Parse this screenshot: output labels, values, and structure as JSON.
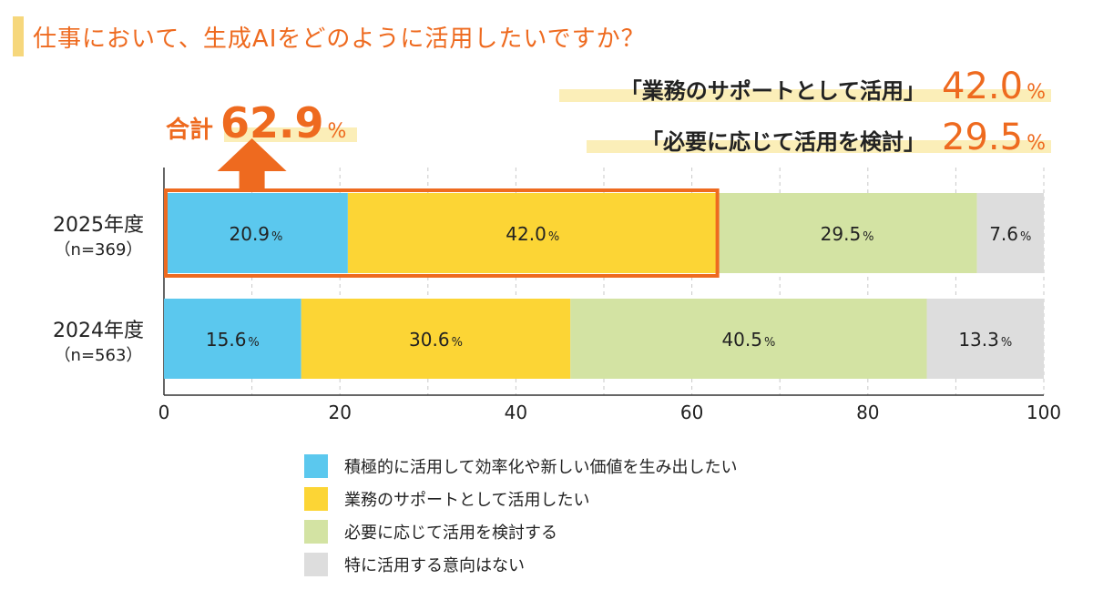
{
  "header": {
    "title": "仕事において、生成AIをどのように活用したいですか？"
  },
  "highlights": [
    {
      "label": "「業務のサポートとして活用」",
      "value": "42.0",
      "unit": "%"
    },
    {
      "label": "「必要に応じて活用を検討」",
      "value": "29.5",
      "unit": "%"
    }
  ],
  "total": {
    "label": "合計",
    "value": "62.9",
    "unit": "%"
  },
  "chart_data": {
    "type": "bar",
    "orientation": "horizontal-stacked",
    "categories": [
      "2025年度",
      "2024年度"
    ],
    "category_sublabels": [
      "（n=369）",
      "（n=563）"
    ],
    "series": [
      {
        "name": "積極的に活用して効率化や新しい価値を生み出したい",
        "color": "#5bc8ee",
        "values": [
          20.9,
          15.6
        ]
      },
      {
        "name": "業務のサポートとして活用したい",
        "color": "#fcd535",
        "values": [
          42.0,
          30.6
        ]
      },
      {
        "name": "必要に応じて活用を検討する",
        "color": "#d3e3a3",
        "values": [
          29.5,
          40.5
        ]
      },
      {
        "name": "特に活用する意向はない",
        "color": "#dddddd",
        "values": [
          7.6,
          13.3
        ]
      }
    ],
    "value_unit": "%",
    "xlim": [
      0,
      100
    ],
    "xticks": [
      0,
      20,
      40,
      60,
      80,
      100
    ],
    "grid": true,
    "legend_position": "bottom",
    "highlight_box": {
      "category": "2025年度",
      "from": 0,
      "to": 62.9,
      "color": "#ee6a1f"
    }
  }
}
